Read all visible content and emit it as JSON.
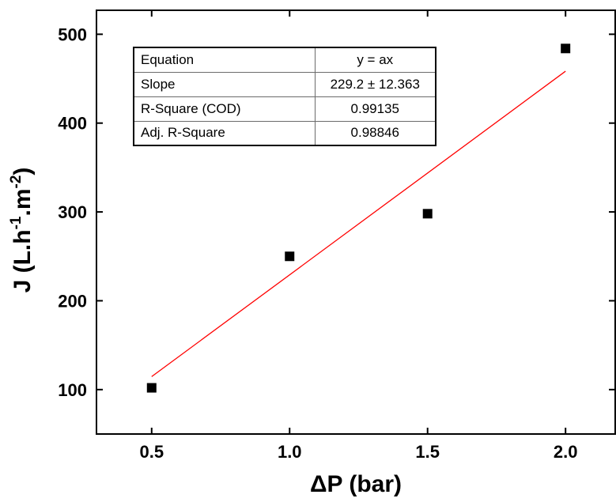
{
  "chart_data": {
    "type": "scatter",
    "xlabel": "ΔP (bar)",
    "ylabel": {
      "base": "J (L.h",
      "sup1": "-1",
      "mid": ".m",
      "sup2": "-2",
      "end": ")"
    },
    "xlim": [
      0.3,
      2.18
    ],
    "ylim": [
      50,
      527
    ],
    "xticks": [
      {
        "value": 0.5,
        "label": "0.5"
      },
      {
        "value": 1.0,
        "label": "1.0"
      },
      {
        "value": 1.5,
        "label": "1.5"
      },
      {
        "value": 2.0,
        "label": "2.0"
      }
    ],
    "yticks": [
      {
        "value": 100,
        "label": "100"
      },
      {
        "value": 200,
        "label": "200"
      },
      {
        "value": 300,
        "label": "300"
      },
      {
        "value": 400,
        "label": "400"
      },
      {
        "value": 500,
        "label": "500"
      }
    ],
    "series": [
      {
        "marker": "square",
        "color": "#000000",
        "points": [
          {
            "x": 0.5,
            "y": 102
          },
          {
            "x": 1.0,
            "y": 250
          },
          {
            "x": 1.5,
            "y": 298
          },
          {
            "x": 2.0,
            "y": 484
          }
        ]
      }
    ],
    "fit": {
      "color": "#ff0000",
      "slope": 229.2,
      "x_range": [
        0.5,
        2.0
      ]
    },
    "grid": false
  },
  "stats_table": {
    "rows": [
      {
        "key": "Equation",
        "value": "y = ax"
      },
      {
        "key": "Slope",
        "value": "229.2 ± 12.363"
      },
      {
        "key": "R-Square (COD)",
        "value": "0.99135"
      },
      {
        "key": "Adj. R-Square",
        "value": "0.98846"
      }
    ]
  }
}
